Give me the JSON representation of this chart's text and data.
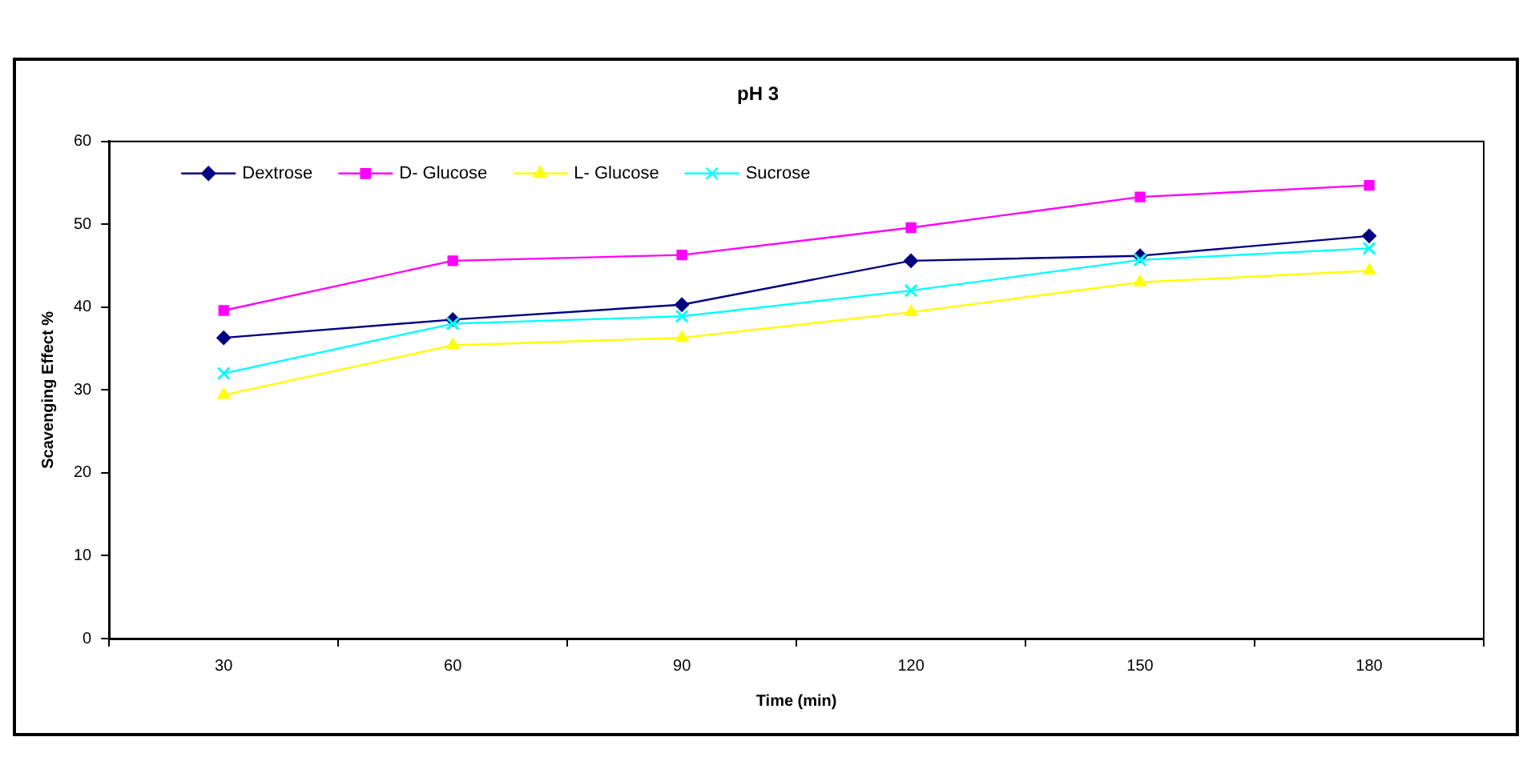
{
  "chart_data": {
    "type": "line",
    "title": "pH 3",
    "xlabel": "Time (min)",
    "ylabel": "Scavenging Effect %",
    "categories": [
      "30",
      "60",
      "90",
      "120",
      "150",
      "180"
    ],
    "series": [
      {
        "name": "Dextrose",
        "color": "#000080",
        "marker": "diamond",
        "values": [
          36.3,
          38.5,
          40.3,
          45.6,
          46.2,
          48.6
        ]
      },
      {
        "name": "D- Glucose",
        "color": "#ff00ff",
        "marker": "square",
        "values": [
          39.6,
          45.6,
          46.3,
          49.6,
          53.3,
          54.7
        ]
      },
      {
        "name": "L- Glucose",
        "color": "#ffff00",
        "marker": "triangle",
        "values": [
          29.4,
          35.4,
          36.3,
          39.4,
          43.0,
          44.4
        ]
      },
      {
        "name": "Sucrose",
        "color": "#00ffff",
        "marker": "cross",
        "values": [
          32.0,
          38.0,
          38.9,
          42.0,
          45.7,
          47.1
        ]
      }
    ],
    "ylim": [
      0,
      60
    ],
    "yticks": [
      0,
      10,
      20,
      30,
      40,
      50,
      60
    ],
    "grid": false,
    "legend": "top left",
    "line_style": "solid"
  }
}
